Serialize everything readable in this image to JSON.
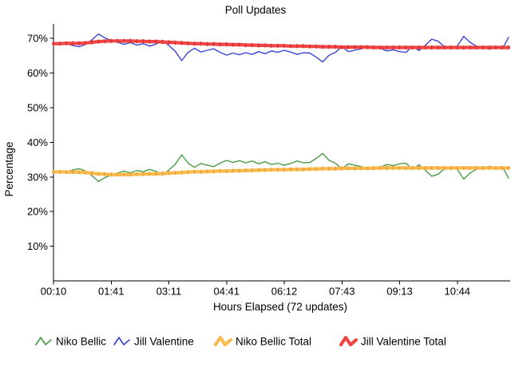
{
  "chart_data": {
    "type": "line",
    "title": "Poll Updates",
    "xlabel": "Hours Elapsed (72 updates)",
    "ylabel": "Percentage",
    "n_points": 72,
    "ylim": [
      0,
      74.2
    ],
    "grid": false,
    "legend_position": "bottom",
    "x_tick_labels": [
      "00:10",
      "01:41",
      "03:11",
      "04:41",
      "06:12",
      "07:43",
      "09:13",
      "10:44"
    ],
    "x_tick_indices": [
      0,
      9,
      18,
      27,
      36,
      45,
      54,
      63
    ],
    "y_tick_labels": [
      "10%",
      "20%",
      "30%",
      "40%",
      "50%",
      "60%",
      "70%"
    ],
    "y_tick_values": [
      10,
      20,
      30,
      40,
      50,
      60,
      70
    ],
    "series": [
      {
        "name": "Niko Bellic",
        "color": "#4a9c46",
        "style": "thin",
        "values": [
          31.4,
          31.8,
          31.5,
          32.0,
          32.4,
          31.7,
          30.4,
          28.7,
          29.8,
          30.6,
          31.1,
          31.7,
          31.2,
          31.9,
          31.5,
          32.2,
          31.6,
          30.5,
          32.0,
          33.7,
          36.4,
          34.0,
          32.8,
          33.9,
          33.4,
          33.0,
          34.0,
          34.8,
          34.2,
          34.7,
          34.1,
          34.6,
          33.8,
          34.4,
          33.6,
          34.0,
          33.4,
          33.9,
          34.6,
          34.1,
          34.2,
          35.4,
          36.8,
          34.8,
          34.0,
          32.3,
          33.8,
          33.4,
          33.0,
          32.5,
          32.2,
          32.8,
          33.6,
          33.3,
          33.8,
          34.0,
          32.2,
          33.5,
          32.0,
          30.2,
          30.8,
          32.4,
          32.8,
          32.2,
          29.4,
          31.1,
          32.3,
          32.6,
          33.1,
          32.7,
          33.0,
          29.7
        ]
      },
      {
        "name": "Jill Valentine",
        "color": "#3a45d5",
        "style": "thin",
        "values": [
          68.6,
          68.2,
          68.5,
          68.0,
          67.6,
          68.3,
          69.6,
          71.3,
          70.2,
          69.4,
          68.9,
          68.3,
          68.8,
          68.1,
          68.5,
          67.8,
          68.4,
          69.5,
          68.0,
          66.3,
          63.6,
          66.0,
          67.2,
          66.1,
          66.6,
          67.0,
          66.0,
          65.2,
          65.8,
          65.3,
          65.9,
          65.4,
          66.2,
          65.6,
          66.4,
          66.0,
          66.6,
          66.1,
          65.4,
          65.9,
          65.8,
          64.6,
          63.2,
          65.2,
          66.0,
          67.7,
          66.2,
          66.6,
          67.0,
          67.5,
          67.8,
          67.2,
          66.4,
          66.7,
          66.2,
          66.0,
          67.8,
          66.5,
          68.0,
          69.8,
          69.2,
          67.6,
          67.2,
          67.8,
          70.6,
          68.9,
          67.7,
          67.4,
          66.9,
          67.3,
          67.0,
          70.3
        ]
      },
      {
        "name": "Niko Bellic Total",
        "color": "#f9ba4d",
        "tick_color": "#ef9f30",
        "style": "thick",
        "values": [
          31.5,
          31.5,
          31.4,
          31.4,
          31.4,
          31.3,
          31.1,
          30.9,
          30.8,
          30.7,
          30.7,
          30.7,
          30.7,
          30.8,
          30.8,
          30.9,
          30.9,
          31.0,
          31.1,
          31.2,
          31.3,
          31.4,
          31.5,
          31.5,
          31.6,
          31.6,
          31.7,
          31.7,
          31.8,
          31.8,
          31.9,
          31.9,
          32.0,
          32.0,
          32.1,
          32.1,
          32.1,
          32.2,
          32.2,
          32.2,
          32.3,
          32.3,
          32.4,
          32.4,
          32.4,
          32.5,
          32.5,
          32.5,
          32.5,
          32.5,
          32.6,
          32.6,
          32.6,
          32.6,
          32.6,
          32.6,
          32.6,
          32.6,
          32.6,
          32.6,
          32.6,
          32.6,
          32.6,
          32.6,
          32.6,
          32.6,
          32.6,
          32.6,
          32.6,
          32.6,
          32.6,
          32.6
        ]
      },
      {
        "name": "Jill Valentine Total",
        "color": "#f04545",
        "tick_color": "#d92f2f",
        "style": "thick",
        "values": [
          68.5,
          68.5,
          68.6,
          68.6,
          68.6,
          68.7,
          68.9,
          69.1,
          69.2,
          69.3,
          69.3,
          69.3,
          69.3,
          69.2,
          69.2,
          69.1,
          69.1,
          69.0,
          68.9,
          68.8,
          68.7,
          68.6,
          68.5,
          68.5,
          68.4,
          68.4,
          68.3,
          68.3,
          68.2,
          68.2,
          68.1,
          68.1,
          68.0,
          68.0,
          67.9,
          67.9,
          67.9,
          67.8,
          67.8,
          67.8,
          67.7,
          67.7,
          67.6,
          67.6,
          67.6,
          67.5,
          67.5,
          67.5,
          67.5,
          67.5,
          67.4,
          67.4,
          67.4,
          67.4,
          67.4,
          67.4,
          67.4,
          67.4,
          67.4,
          67.4,
          67.4,
          67.4,
          67.4,
          67.4,
          67.4,
          67.4,
          67.4,
          67.4,
          67.4,
          67.4,
          67.4,
          67.4
        ]
      }
    ]
  }
}
